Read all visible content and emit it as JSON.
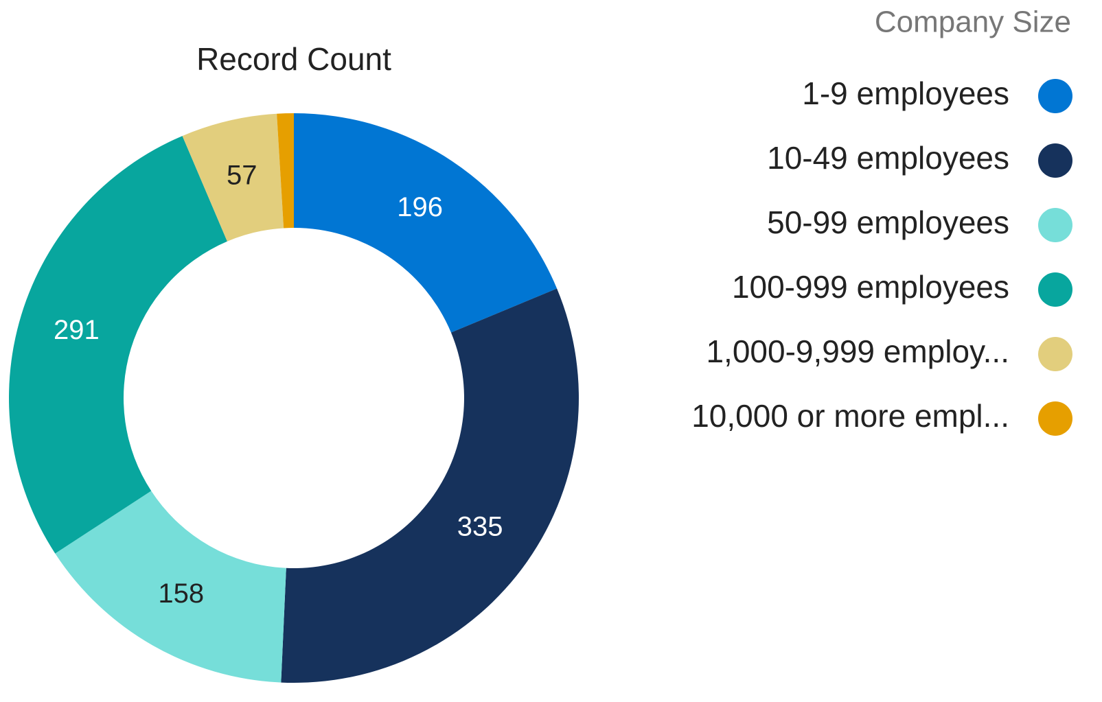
{
  "chart_data": {
    "type": "donut",
    "title": "Record Count",
    "legend_title": "Company Size",
    "categories": [
      "1-9 employees",
      "10-49 employees",
      "50-99 employees",
      "100-999 employees",
      "1,000-9,999 employ...",
      "10,000 or more empl..."
    ],
    "values": [
      196,
      335,
      158,
      291,
      57,
      10
    ],
    "colors": [
      "#0176d3",
      "#16325c",
      "#76ded9",
      "#08a69e",
      "#e2ce7d",
      "#e69f00"
    ],
    "legend": "right"
  }
}
